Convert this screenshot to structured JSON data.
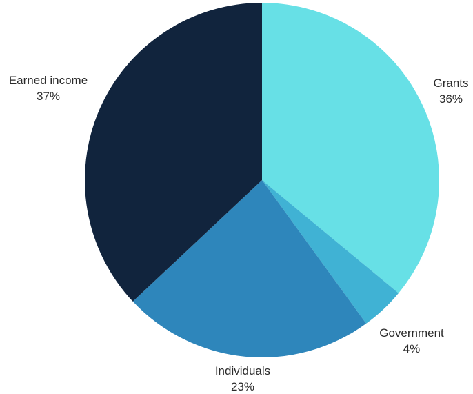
{
  "chart_data": {
    "type": "pie",
    "title": "",
    "start_angle_deg": 0,
    "direction": "clockwise",
    "legend": "none",
    "slices": [
      {
        "label": "Grants",
        "value": 36,
        "value_label": "36%",
        "color": "#67E0E6"
      },
      {
        "label": "Government",
        "value": 4,
        "value_label": "4%",
        "color": "#40B2D4"
      },
      {
        "label": "Individuals",
        "value": 23,
        "value_label": "23%",
        "color": "#2E86BB"
      },
      {
        "label": "Earned income",
        "value": 37,
        "value_label": "37%",
        "color": "#11243D"
      }
    ]
  }
}
